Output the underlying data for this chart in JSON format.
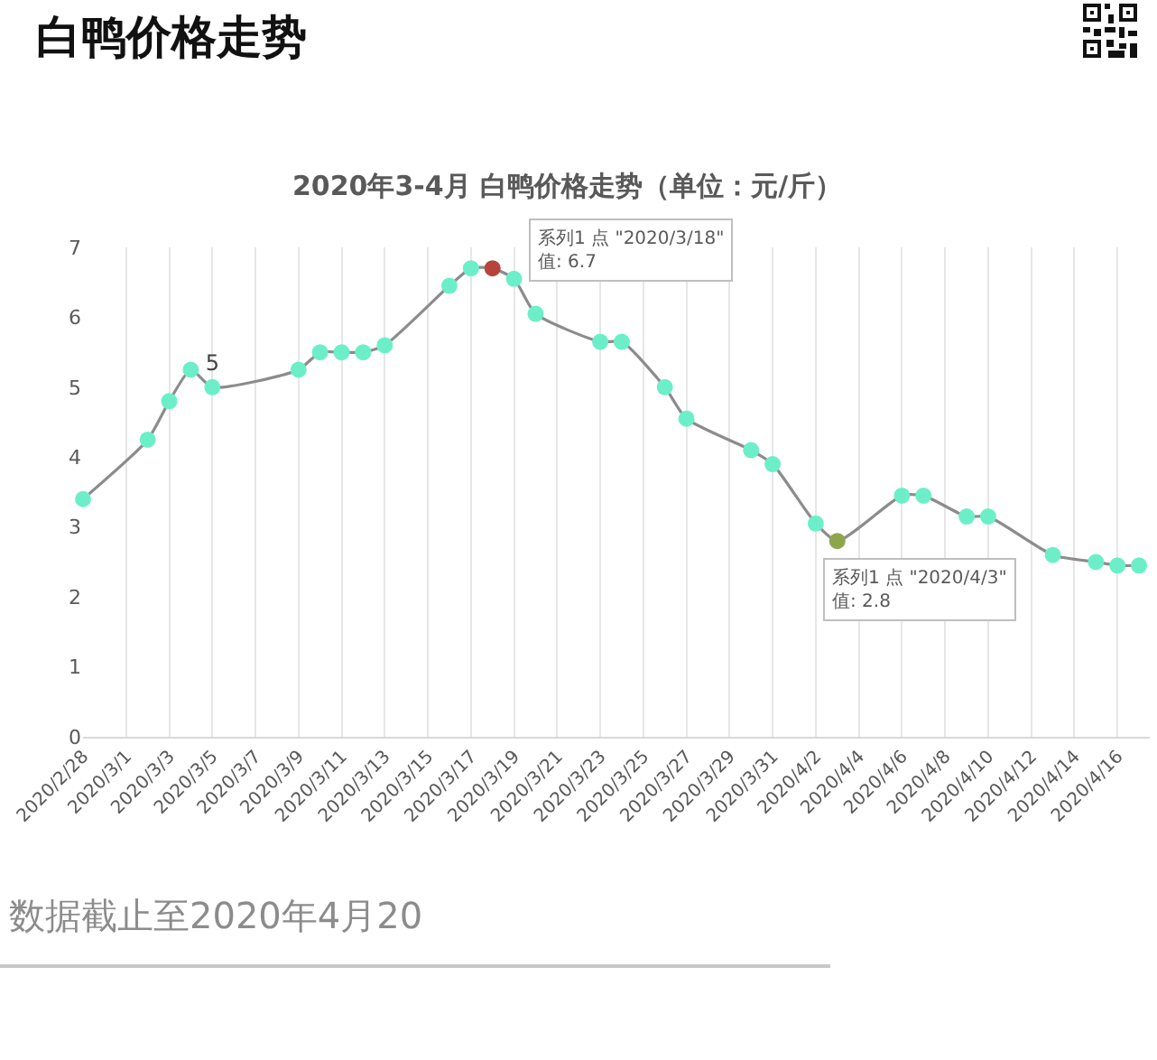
{
  "chart_data": {
    "type": "line",
    "title": "白鸭价格走势",
    "subtitle": "2020年3-4月 白鸭价格走势（单位：元/斤）",
    "x": [
      "2020-02-28",
      "2020-03-02",
      "2020-03-03",
      "2020-03-04",
      "2020-03-05",
      "2020-03-09",
      "2020-03-10",
      "2020-03-11",
      "2020-03-12",
      "2020-03-13",
      "2020-03-16",
      "2020-03-17",
      "2020-03-18",
      "2020-03-19",
      "2020-03-20",
      "2020-03-23",
      "2020-03-24",
      "2020-03-26",
      "2020-03-27",
      "2020-03-30",
      "2020-03-31",
      "2020-04-02",
      "2020-04-03",
      "2020-04-06",
      "2020-04-07",
      "2020-04-09",
      "2020-04-10",
      "2020-04-13",
      "2020-04-15",
      "2020-04-16",
      "2020-04-17"
    ],
    "values": [
      3.4,
      4.25,
      4.8,
      5.25,
      5,
      5.25,
      5.5,
      5.5,
      5.5,
      5.6,
      6.45,
      6.7,
      6.7,
      6.55,
      6.05,
      5.65,
      5.65,
      5,
      4.55,
      4.1,
      3.9,
      3.05,
      2.8,
      3.45,
      3.45,
      3.15,
      3.15,
      2.6,
      2.5,
      2.45,
      2.45
    ],
    "color": "#8c8c8c",
    "colors": [
      "#6cefc9",
      "#6cefc9",
      "#6cefc9",
      "#6cefc9",
      "#6cefc9",
      "#6cefc9",
      "#6cefc9",
      "#6cefc9",
      "#6cefc9",
      "#6cefc9",
      "#6cefc9",
      "#6cefc9",
      "#b7443c",
      "#6cefc9",
      "#6cefc9",
      "#6cefc9",
      "#6cefc9",
      "#6cefc9",
      "#6cefc9",
      "#6cefc9",
      "#6cefc9",
      "#6cefc9",
      "#8da64c",
      "#6cefc9",
      "#6cefc9",
      "#6cefc9",
      "#6cefc9",
      "#6cefc9",
      "#6cefc9",
      "#6cefc9",
      "#6cefc9"
    ],
    "value_labels": [
      null,
      null,
      null,
      null,
      "5",
      null,
      null,
      null,
      null,
      null,
      null,
      null,
      null,
      null,
      null,
      null,
      null,
      null,
      null,
      null,
      null,
      null,
      null,
      null,
      null,
      null,
      null,
      null,
      null,
      null,
      null
    ],
    "marker": "circle",
    "line_style": "solid",
    "grid": "x",
    "xlim": [
      "2020-02-28",
      "2020-04-17T12:00"
    ],
    "xticks": [
      {
        "value": "2020-02-28",
        "label": "2020/2/28"
      },
      {
        "value": "2020-03-01",
        "label": "2020/3/1"
      },
      {
        "value": "2020-03-03",
        "label": "2020/3/3"
      },
      {
        "value": "2020-03-05",
        "label": "2020/3/5"
      },
      {
        "value": "2020-03-07",
        "label": "2020/3/7"
      },
      {
        "value": "2020-03-09",
        "label": "2020/3/9"
      },
      {
        "value": "2020-03-11",
        "label": "2020/3/11"
      },
      {
        "value": "2020-03-13",
        "label": "2020/3/13"
      },
      {
        "value": "2020-03-15",
        "label": "2020/3/15"
      },
      {
        "value": "2020-03-17",
        "label": "2020/3/17"
      },
      {
        "value": "2020-03-19",
        "label": "2020/3/19"
      },
      {
        "value": "2020-03-21",
        "label": "2020/3/21"
      },
      {
        "value": "2020-03-23",
        "label": "2020/3/23"
      },
      {
        "value": "2020-03-25",
        "label": "2020/3/25"
      },
      {
        "value": "2020-03-27",
        "label": "2020/3/27"
      },
      {
        "value": "2020-03-29",
        "label": "2020/3/29"
      },
      {
        "value": "2020-03-31",
        "label": "2020/3/31"
      },
      {
        "value": "2020-04-02",
        "label": "2020/4/2"
      },
      {
        "value": "2020-04-04",
        "label": "2020/4/4"
      },
      {
        "value": "2020-04-06",
        "label": "2020/4/6"
      },
      {
        "value": "2020-04-08",
        "label": "2020/4/8"
      },
      {
        "value": "2020-04-10",
        "label": "2020/4/10"
      },
      {
        "value": "2020-04-12",
        "label": "2020/4/12"
      },
      {
        "value": "2020-04-14",
        "label": "2020/4/14"
      },
      {
        "value": "2020-04-16",
        "label": "2020/4/16"
      }
    ],
    "ylim": [
      0,
      7
    ],
    "yticks": [
      0,
      1,
      2,
      3,
      4,
      5,
      6,
      7
    ],
    "annotations": [
      {
        "text": "系列1 点 \"2020/3/18\"\n值: 6.7",
        "x": "2020-03-18",
        "y": 6.7
      },
      {
        "text": "系列1 点 \"2020/4/3\"\n值: 2.8",
        "x": "2020-04-03",
        "y": 2.8
      },
      "数据截止至2020年4月20"
    ]
  }
}
